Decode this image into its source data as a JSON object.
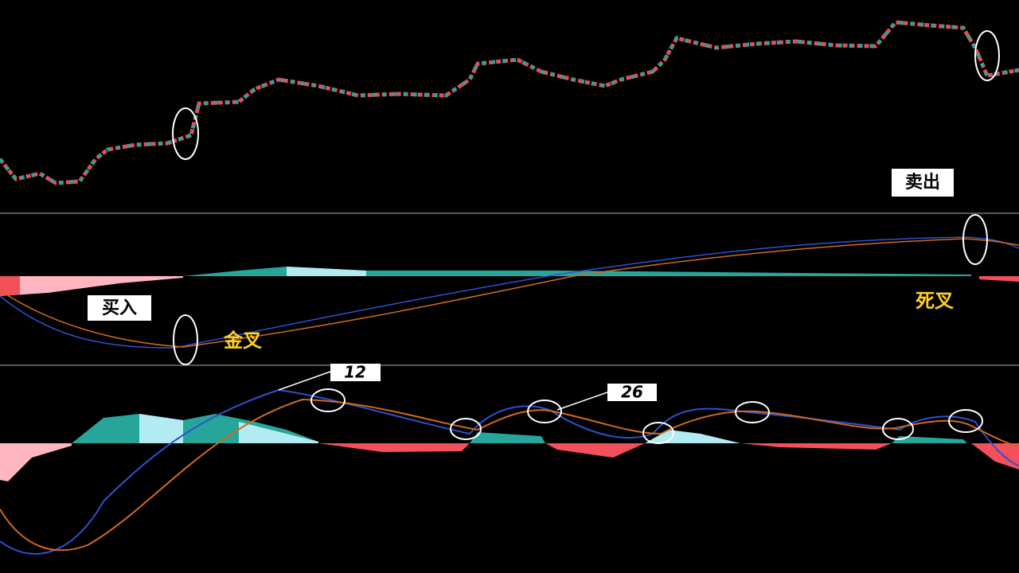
{
  "annotations": {
    "sell": "卖出",
    "buy": "买入",
    "golden_cross": "金叉",
    "death_cross": "死叉",
    "fast_period": 12,
    "slow_period": 26
  }
}
